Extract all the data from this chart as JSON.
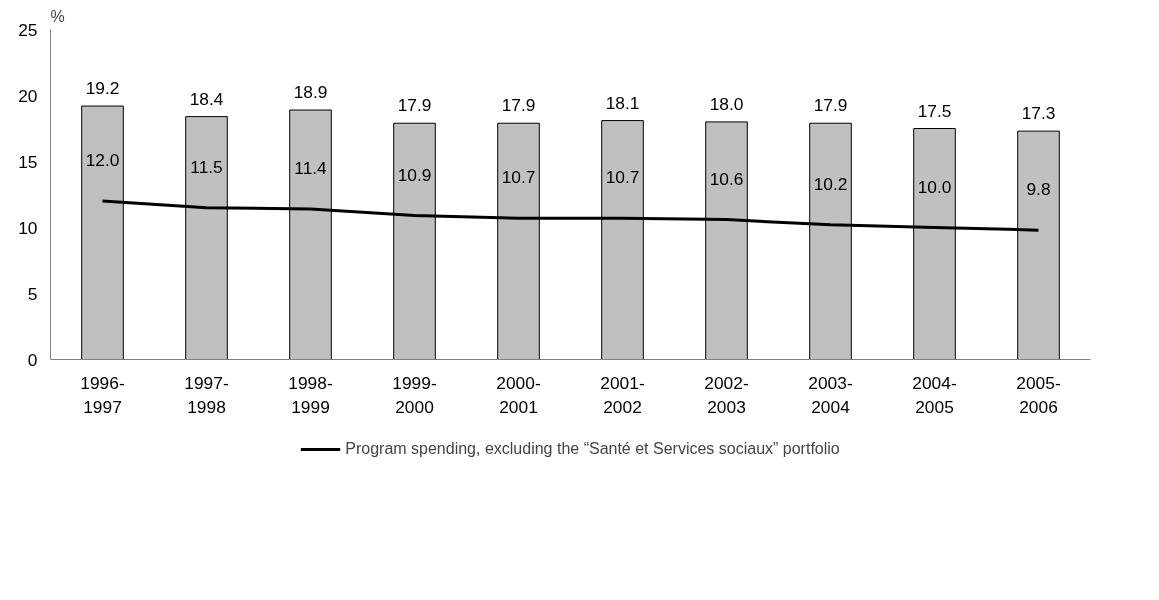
{
  "chart_data": {
    "type": "bar",
    "ylabel": "%",
    "categories": [
      "1996-\n1997",
      "1997-\n1998",
      "1998-\n1999",
      "1999-\n2000",
      "2000-\n2001",
      "2001-\n2002",
      "2002-\n2003",
      "2003-\n2004",
      "2004-\n2005",
      "2005-\n2006"
    ],
    "series": [
      {
        "color": "#c0c0c0",
        "values": [
          19.2,
          18.4,
          18.9,
          17.9,
          17.9,
          18.1,
          18.0,
          17.9,
          17.5,
          17.3
        ],
        "value_labels": [
          "19.2",
          "18.4",
          "18.9",
          "17.9",
          "17.9",
          "18.1",
          "18.0",
          "17.9",
          "17.5",
          "17.3"
        ]
      },
      {
        "type": "line",
        "name": "Program spending, excluding the “Santé et Services sociaux” portfolio",
        "color": "#000000",
        "values": [
          12.0,
          11.5,
          11.4,
          10.9,
          10.7,
          10.7,
          10.6,
          10.2,
          10.0,
          9.8
        ],
        "value_labels": [
          "12.0",
          "11.5",
          "11.4",
          "10.9",
          "10.7",
          "10.7",
          "10.6",
          "10.2",
          "10.0",
          "9.8"
        ]
      }
    ],
    "ylim": [
      0,
      25
    ],
    "yticks": [
      0,
      5,
      10,
      15,
      20,
      25
    ],
    "legend": "bottom"
  }
}
